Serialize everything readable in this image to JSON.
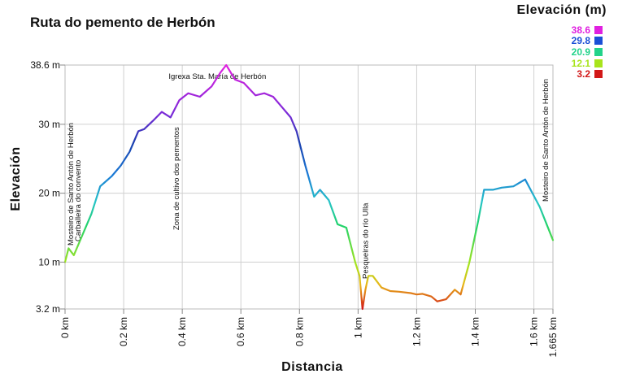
{
  "chart_data": {
    "type": "line",
    "title": "Ruta do pemento de Herbón",
    "xlabel": "Distancia",
    "ylabel": "Elevación",
    "xlim": [
      0,
      1.665
    ],
    "ylim": [
      3.2,
      38.6
    ],
    "x_ticks": [
      {
        "value": 0,
        "label": "0 km"
      },
      {
        "value": 0.2,
        "label": "0.2 km"
      },
      {
        "value": 0.4,
        "label": "0.4 km"
      },
      {
        "value": 0.6,
        "label": "0.6 km"
      },
      {
        "value": 0.8,
        "label": "0.8 km"
      },
      {
        "value": 1.0,
        "label": "1 km"
      },
      {
        "value": 1.2,
        "label": "1.2 km"
      },
      {
        "value": 1.4,
        "label": "1.4 km"
      },
      {
        "value": 1.6,
        "label": "1.6 km"
      },
      {
        "value": 1.665,
        "label": "1.665 km"
      }
    ],
    "y_ticks": [
      {
        "value": 3.2,
        "label": "3.2 m"
      },
      {
        "value": 10,
        "label": "10 m"
      },
      {
        "value": 20,
        "label": "20 m"
      },
      {
        "value": 30,
        "label": "30 m"
      },
      {
        "value": 38.6,
        "label": "38.6 m"
      }
    ],
    "grid": true,
    "legend": {
      "title": "Elevación (m)",
      "placement": "top-right",
      "items": [
        {
          "label": "38.6",
          "color": "#e020e0"
        },
        {
          "label": "29.8",
          "color": "#1a4fd6"
        },
        {
          "label": "20.9",
          "color": "#22d38a"
        },
        {
          "label": "12.1",
          "color": "#a8e41c"
        },
        {
          "label": "3.2",
          "color": "#d21818"
        }
      ]
    },
    "series": [
      {
        "x": [
          0,
          0.012,
          0.03,
          0.06,
          0.09,
          0.12,
          0.16,
          0.19,
          0.22,
          0.25,
          0.27,
          0.3,
          0.33,
          0.36,
          0.39,
          0.42,
          0.46,
          0.5,
          0.53,
          0.55,
          0.58,
          0.61,
          0.65,
          0.68,
          0.71,
          0.74,
          0.77,
          0.79,
          0.82,
          0.85,
          0.87,
          0.9,
          0.93,
          0.96,
          0.99,
          1.005,
          1.015,
          1.025,
          1.035,
          1.05,
          1.08,
          1.11,
          1.14,
          1.18,
          1.2,
          1.22,
          1.25,
          1.27,
          1.3,
          1.33,
          1.35,
          1.38,
          1.41,
          1.43,
          1.46,
          1.49,
          1.53,
          1.57,
          1.62,
          1.665
        ],
        "y": [
          10.0,
          12.0,
          11.0,
          14.0,
          17.0,
          21.0,
          22.5,
          24.0,
          26.0,
          29.0,
          29.3,
          30.5,
          31.8,
          31.0,
          33.5,
          34.5,
          34.0,
          35.5,
          37.5,
          38.6,
          36.5,
          36.0,
          34.2,
          34.5,
          34.0,
          32.5,
          31.0,
          29.0,
          24.0,
          19.5,
          20.5,
          19.0,
          15.5,
          15.0,
          10.0,
          8.0,
          3.2,
          6.0,
          8.0,
          8.0,
          6.3,
          5.8,
          5.7,
          5.5,
          5.3,
          5.4,
          5.0,
          4.3,
          4.6,
          6.0,
          5.3,
          10.0,
          16.0,
          20.5,
          20.5,
          20.8,
          21.0,
          22.0,
          18.0,
          13.2
        ]
      }
    ],
    "annotations": [
      {
        "x": 0.02,
        "label": "Mosteiro de Santo Antón de Herbón"
      },
      {
        "x": 0.045,
        "label": "Carballeira do convento"
      },
      {
        "x": 0.38,
        "label": "Zona de cultivo dos pementos"
      },
      {
        "x": 0.52,
        "label": "Igrexa Sta. María de Herbón"
      },
      {
        "x": 1.025,
        "label": "Pesqueiras do río Ulla"
      },
      {
        "x": 1.64,
        "label": "Mosteiro de Santo Antón de Herbón"
      }
    ]
  }
}
